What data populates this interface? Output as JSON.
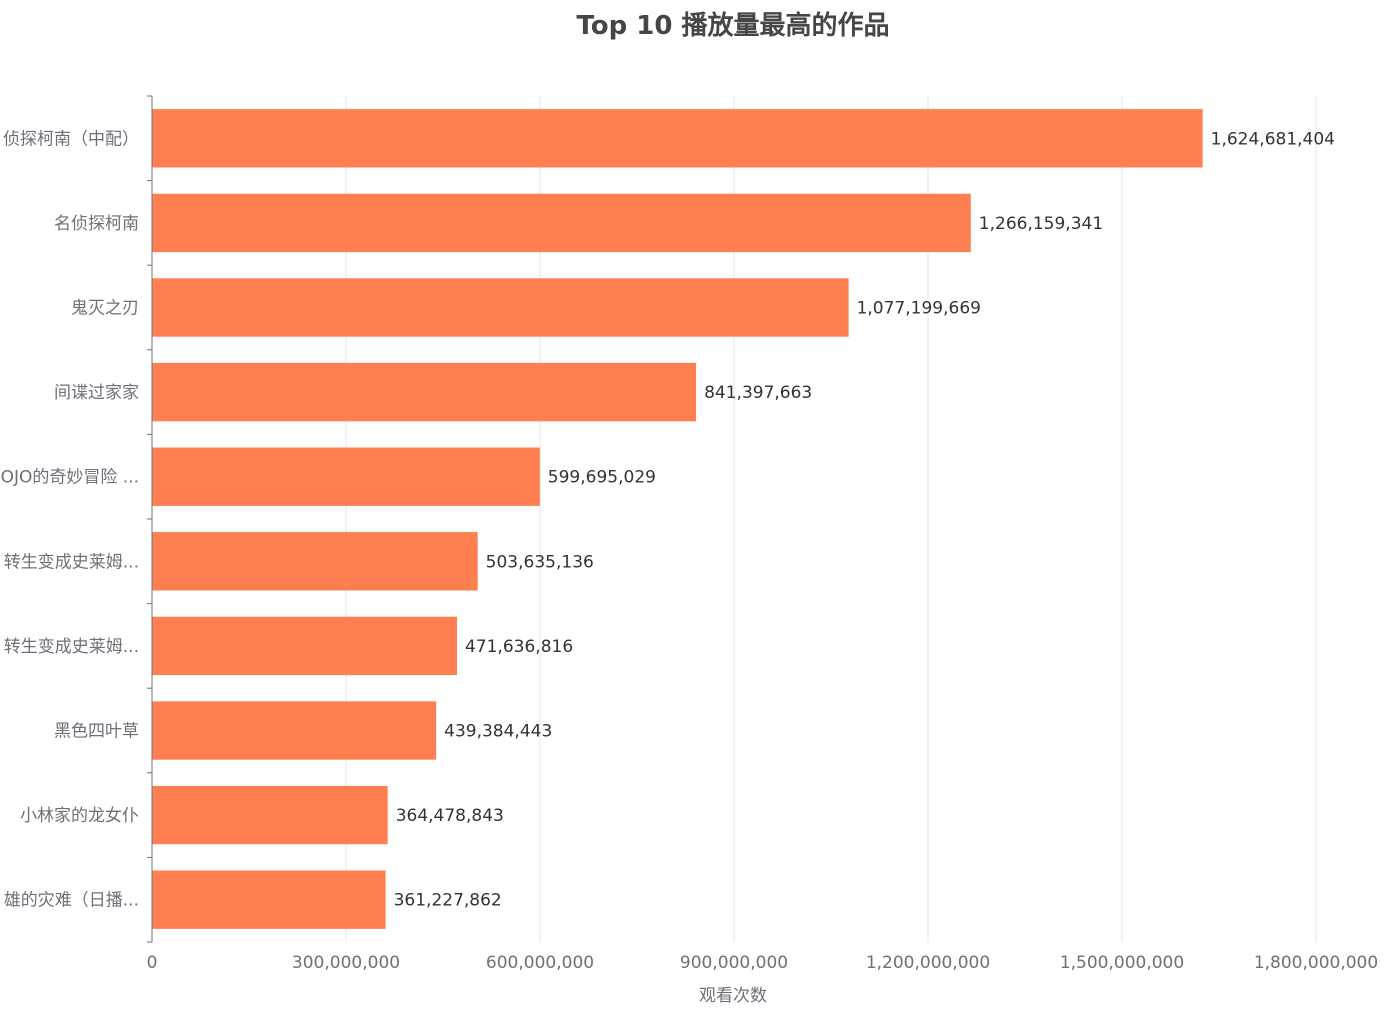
{
  "chart_data": {
    "type": "bar",
    "orientation": "horizontal",
    "title": "Top 10 播放量最高的作品",
    "xlabel": "观看次数",
    "ylabel": "",
    "xlim": [
      0,
      1800000000
    ],
    "x_ticks": [
      0,
      300000000,
      600000000,
      900000000,
      1200000000,
      1500000000,
      1800000000
    ],
    "x_tick_labels": [
      "0",
      "300,000,000",
      "600,000,000",
      "900,000,000",
      "1,200,000,000",
      "1,500,000,000",
      "1,800,000,000"
    ],
    "categories": [
      "侦探柯南（中配）",
      "名侦探柯南",
      "鬼灭之刃",
      "间谍过家家",
      "JOJO的奇妙冒险 ...",
      "转生变成史莱姆...",
      "转生变成史莱姆...",
      "黑色四叶草",
      "小林家的龙女仆",
      "雄的灾难（日播..."
    ],
    "values": [
      1624681404,
      1266159341,
      1077199669,
      841397663,
      599695029,
      503635136,
      471636816,
      439384443,
      364478843,
      361227862
    ],
    "value_labels": [
      "1,624,681,404",
      "1,266,159,341",
      "1,077,199,669",
      "841,397,663",
      "599,695,029",
      "503,635,136",
      "471,636,816",
      "439,384,443",
      "364,478,843",
      "361,227,862"
    ],
    "bar_color": "#ff7f50",
    "grid": true
  }
}
